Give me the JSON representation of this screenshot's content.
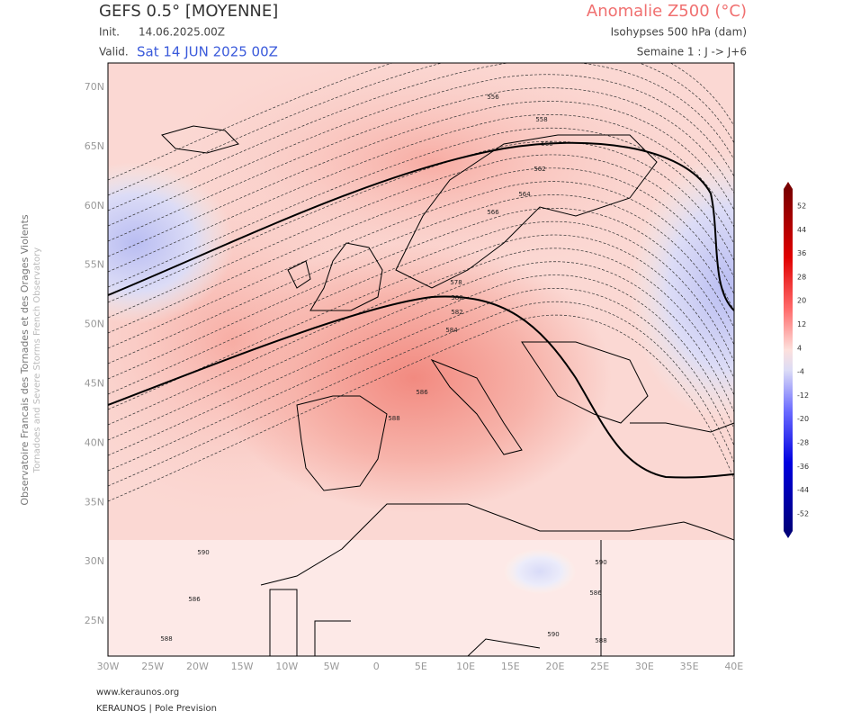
{
  "header": {
    "title": "GEFS 0.5° [MOYENNE]",
    "init_label": "Init.",
    "init": "14.06.2025.00Z",
    "valid_label": "Valid.",
    "valid": "Sat 14 JUN 2025 00Z",
    "product": "Anomalie Z500 (°C)",
    "contours": "Isohypses 500 hPa (dam)",
    "period": "Semaine 1 : J -> J+6"
  },
  "map": {
    "lat_labels": [
      "70N",
      "65N",
      "60N",
      "55N",
      "50N",
      "45N",
      "40N",
      "35N",
      "30N",
      "25N"
    ],
    "lon_labels": [
      "30W",
      "25W",
      "20W",
      "15W",
      "10W",
      "5W",
      "0",
      "5E",
      "10E",
      "15E",
      "20E",
      "25E",
      "30E",
      "35E",
      "40E"
    ],
    "contour_labels": [
      "556",
      "558",
      "560",
      "562",
      "564",
      "566",
      "578",
      "580",
      "582",
      "584",
      "586",
      "588",
      "590",
      "586",
      "588",
      "590",
      "586",
      "588",
      "590"
    ]
  },
  "colorbar": {
    "labels": [
      "52",
      "44",
      "36",
      "28",
      "20",
      "12",
      "4",
      "-4",
      "-12",
      "-20",
      "-28",
      "-36",
      "-44",
      "-52"
    ]
  },
  "side": {
    "line1": "Observatoire Francais des Tornades et des Orages Violents",
    "line2": "Tornadoes and Severe Storms French Observatory"
  },
  "footer": {
    "site": "www.keraunos.org",
    "credit": "KERAUNOS | Pole Prevision"
  }
}
